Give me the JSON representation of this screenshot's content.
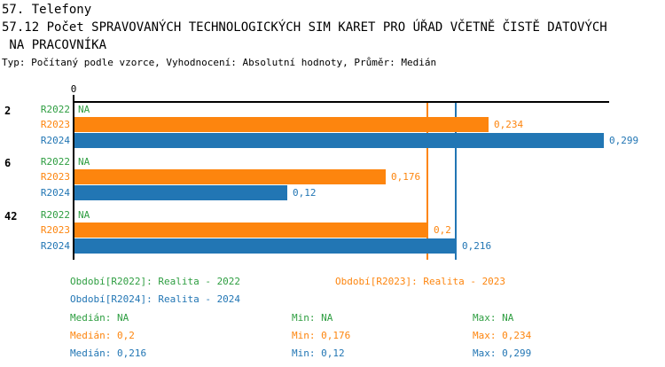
{
  "colors": {
    "green": "#2E9E41",
    "orange": "#FD850E",
    "blue": "#2276B4",
    "axis": "#000000"
  },
  "header": {
    "title": "57. Telefony",
    "subtitle_line1": "57.12 Počet SPRAVOVANÝCH TECHNOLOGICKÝCH SIM KARET PRO ÚŘAD VČETNĚ ČISTĚ DATOVÝCH",
    "subtitle_line2": " NA PRACOVNÍKA",
    "meta": "Typ: Počítaný podle vzorce, Vyhodnocení: Absolutní hodnoty, Průměr: Medián"
  },
  "chart_data": {
    "type": "bar",
    "orientation": "horizontal",
    "title": "57.12 Počet SPRAVOVANÝCH TECHNOLOGICKÝCH SIM KARET PRO ÚŘAD VČETNĚ ČISTĚ DATOVÝCH NA PRACOVNÍKA",
    "x_axis": {
      "tick_labels": [
        "0"
      ],
      "range": [
        0,
        0.302
      ],
      "grid": false
    },
    "categories": [
      "2",
      "6",
      "42"
    ],
    "series": [
      {
        "name": "R2022",
        "color_key": "green",
        "values": [
          null,
          null,
          null
        ],
        "display_values": [
          "NA",
          "NA",
          "NA"
        ]
      },
      {
        "name": "R2023",
        "color_key": "orange",
        "values": [
          0.234,
          0.176,
          0.2
        ],
        "display_values": [
          "0,234",
          "0,176",
          "0,2"
        ]
      },
      {
        "name": "R2024",
        "color_key": "blue",
        "values": [
          0.299,
          0.12,
          0.216
        ],
        "display_values": [
          "0,299",
          "0,12",
          "0,216"
        ]
      }
    ],
    "reference_lines": [
      {
        "series": "R2023",
        "value": 0.2,
        "color_key": "orange"
      },
      {
        "series": "R2024",
        "value": 0.216,
        "color_key": "blue"
      }
    ],
    "legend_position": "bottom"
  },
  "legend": {
    "items": [
      {
        "label": "Období[R2022]: Realita - 2022",
        "color_key": "green"
      },
      {
        "label": "Období[R2023]: Realita - 2023",
        "color_key": "orange"
      },
      {
        "label": "Období[R2024]: Realita - 2024",
        "color_key": "blue"
      }
    ]
  },
  "stats": {
    "rows": [
      {
        "color_key": "green",
        "cells": [
          "Medián: NA",
          "Min: NA",
          "Max: NA"
        ]
      },
      {
        "color_key": "orange",
        "cells": [
          "Medián: 0,2",
          "Min: 0,176",
          "Max: 0,234"
        ]
      },
      {
        "color_key": "blue",
        "cells": [
          "Medián: 0,216",
          "Min: 0,12",
          "Max: 0,299"
        ]
      }
    ]
  }
}
